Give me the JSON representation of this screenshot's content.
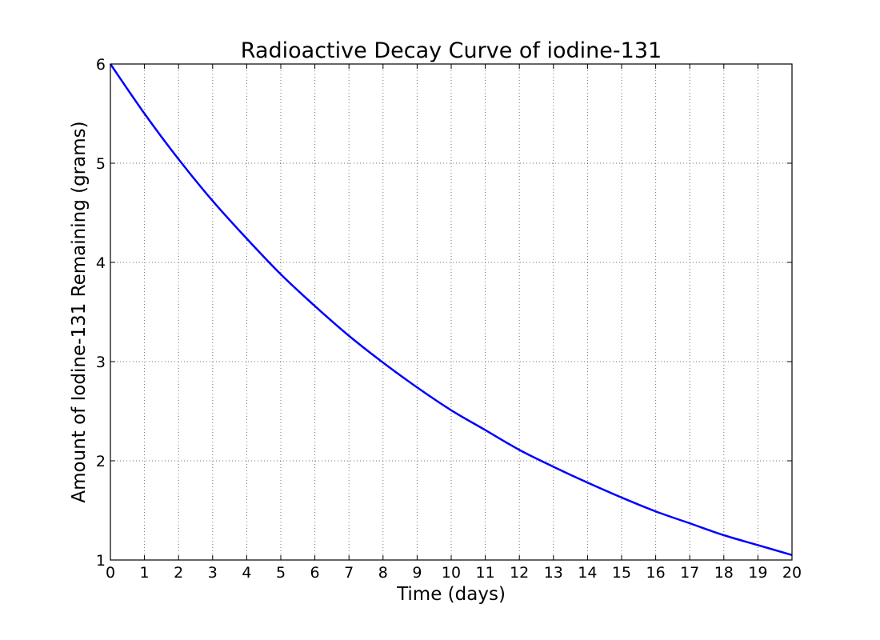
{
  "chart_data": {
    "type": "line",
    "title": "Radioactive Decay Curve of iodine-131",
    "xlabel": "Time (days)",
    "ylabel": "Amount of Iodine-131 Remaining (grams)",
    "xlim": [
      0,
      20
    ],
    "ylim": [
      1,
      6
    ],
    "x_ticks": [
      0,
      1,
      2,
      3,
      4,
      5,
      6,
      7,
      8,
      9,
      10,
      11,
      12,
      13,
      14,
      15,
      16,
      17,
      18,
      19,
      20
    ],
    "y_ticks": [
      1,
      2,
      3,
      4,
      5,
      6
    ],
    "grid": true,
    "legend": "none",
    "series": [
      {
        "color": "#0000ff",
        "x": [
          0,
          1,
          2,
          3,
          4,
          5,
          6,
          7,
          8,
          9,
          10,
          11,
          12,
          13,
          14,
          15,
          16,
          17,
          18,
          19,
          20
        ],
        "y": [
          6.0,
          5.5,
          5.04,
          4.62,
          4.24,
          3.88,
          3.56,
          3.26,
          2.99,
          2.74,
          2.51,
          2.31,
          2.11,
          1.94,
          1.78,
          1.63,
          1.49,
          1.37,
          1.25,
          1.15,
          1.05
        ]
      }
    ]
  }
}
